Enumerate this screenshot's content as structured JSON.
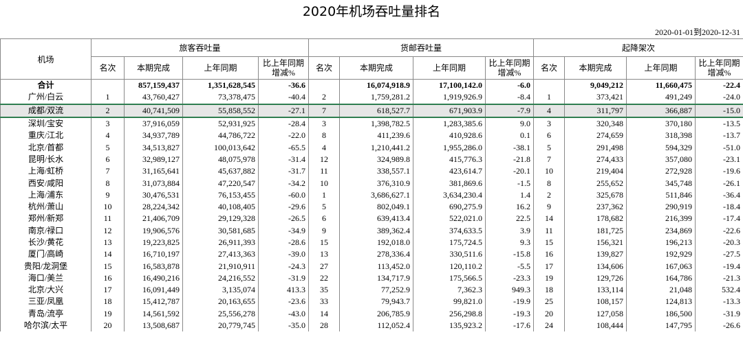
{
  "title": "2020年机场吞吐量排名",
  "date_range": "2020-01-01到2020-12-31",
  "header": {
    "airport": "机场",
    "groups": [
      "旅客吞吐量",
      "货邮吞吐量",
      "起降架次"
    ],
    "sub": [
      "名次",
      "本期完成",
      "上年同期",
      "比上年同期\n增减%"
    ]
  },
  "table": {
    "rows": [
      {
        "name": "合计",
        "passenger": {
          "current": "857,159,437",
          "previous": "1,351,628,545",
          "change": "-36.6"
        },
        "cargo": {
          "current": "16,074,918.9",
          "previous": "17,100,142.0",
          "change": "-6.0"
        },
        "flights": {
          "current": "9,049,212",
          "previous": "11,660,475",
          "change": "-22.4"
        }
      },
      {
        "name": "广州/白云",
        "passenger": {
          "rank": "1",
          "current": "43,760,427",
          "previous": "73,378,475",
          "change": "-40.4"
        },
        "cargo": {
          "rank": "2",
          "current": "1,759,281.2",
          "previous": "1,919,926.9",
          "change": "-8.4"
        },
        "flights": {
          "rank": "1",
          "current": "373,421",
          "previous": "491,249",
          "change": "-24.0"
        }
      },
      {
        "name": "成都/双流",
        "passenger": {
          "rank": "2",
          "current": "40,741,509",
          "previous": "55,858,552",
          "change": "-27.1"
        },
        "cargo": {
          "rank": "7",
          "current": "618,527.7",
          "previous": "671,903.9",
          "change": "-7.9"
        },
        "flights": {
          "rank": "4",
          "current": "311,797",
          "previous": "366,887",
          "change": "-15.0"
        }
      },
      {
        "name": "深圳/宝安",
        "passenger": {
          "rank": "3",
          "current": "37,916,059",
          "previous": "52,931,925",
          "change": "-28.4"
        },
        "cargo": {
          "rank": "3",
          "current": "1,398,782.5",
          "previous": "1,283,385.6",
          "change": "9.0"
        },
        "flights": {
          "rank": "3",
          "current": "320,348",
          "previous": "370,180",
          "change": "-13.5"
        }
      },
      {
        "name": "重庆/江北",
        "passenger": {
          "rank": "4",
          "current": "34,937,789",
          "previous": "44,786,722",
          "change": "-22.0"
        },
        "cargo": {
          "rank": "8",
          "current": "411,239.6",
          "previous": "410,928.6",
          "change": "0.1"
        },
        "flights": {
          "rank": "6",
          "current": "274,659",
          "previous": "318,398",
          "change": "-13.7"
        }
      },
      {
        "name": "北京/首都",
        "passenger": {
          "rank": "5",
          "current": "34,513,827",
          "previous": "100,013,642",
          "change": "-65.5"
        },
        "cargo": {
          "rank": "4",
          "current": "1,210,441.2",
          "previous": "1,955,286.0",
          "change": "-38.1"
        },
        "flights": {
          "rank": "5",
          "current": "291,498",
          "previous": "594,329",
          "change": "-51.0"
        }
      },
      {
        "name": "昆明/长水",
        "passenger": {
          "rank": "6",
          "current": "32,989,127",
          "previous": "48,075,978",
          "change": "-31.4"
        },
        "cargo": {
          "rank": "12",
          "current": "324,989.8",
          "previous": "415,776.3",
          "change": "-21.8"
        },
        "flights": {
          "rank": "7",
          "current": "274,433",
          "previous": "357,080",
          "change": "-23.1"
        }
      },
      {
        "name": "上海/虹桥",
        "passenger": {
          "rank": "7",
          "current": "31,165,641",
          "previous": "45,637,882",
          "change": "-31.7"
        },
        "cargo": {
          "rank": "11",
          "current": "338,557.1",
          "previous": "423,614.7",
          "change": "-20.1"
        },
        "flights": {
          "rank": "10",
          "current": "219,404",
          "previous": "272,928",
          "change": "-19.6"
        }
      },
      {
        "name": "西安/咸阳",
        "passenger": {
          "rank": "8",
          "current": "31,073,884",
          "previous": "47,220,547",
          "change": "-34.2"
        },
        "cargo": {
          "rank": "10",
          "current": "376,310.9",
          "previous": "381,869.6",
          "change": "-1.5"
        },
        "flights": {
          "rank": "8",
          "current": "255,652",
          "previous": "345,748",
          "change": "-26.1"
        }
      },
      {
        "name": "上海/浦东",
        "passenger": {
          "rank": "9",
          "current": "30,476,531",
          "previous": "76,153,455",
          "change": "-60.0"
        },
        "cargo": {
          "rank": "1",
          "current": "3,686,627.1",
          "previous": "3,634,230.4",
          "change": "1.4"
        },
        "flights": {
          "rank": "2",
          "current": "325,678",
          "previous": "511,846",
          "change": "-36.4"
        }
      },
      {
        "name": "杭州/萧山",
        "passenger": {
          "rank": "10",
          "current": "28,224,342",
          "previous": "40,108,405",
          "change": "-29.6"
        },
        "cargo": {
          "rank": "5",
          "current": "802,049.1",
          "previous": "690,275.9",
          "change": "16.2"
        },
        "flights": {
          "rank": "9",
          "current": "237,362",
          "previous": "290,919",
          "change": "-18.4"
        }
      },
      {
        "name": "郑州/新郑",
        "passenger": {
          "rank": "11",
          "current": "21,406,709",
          "previous": "29,129,328",
          "change": "-26.5"
        },
        "cargo": {
          "rank": "6",
          "current": "639,413.4",
          "previous": "522,021.0",
          "change": "22.5"
        },
        "flights": {
          "rank": "14",
          "current": "178,682",
          "previous": "216,399",
          "change": "-17.4"
        }
      },
      {
        "name": "南京/禄口",
        "passenger": {
          "rank": "12",
          "current": "19,906,576",
          "previous": "30,581,685",
          "change": "-34.9"
        },
        "cargo": {
          "rank": "9",
          "current": "389,362.4",
          "previous": "374,633.5",
          "change": "3.9"
        },
        "flights": {
          "rank": "11",
          "current": "181,725",
          "previous": "234,869",
          "change": "-22.6"
        }
      },
      {
        "name": "长沙/黄花",
        "passenger": {
          "rank": "13",
          "current": "19,223,825",
          "previous": "26,911,393",
          "change": "-28.6"
        },
        "cargo": {
          "rank": "15",
          "current": "192,018.0",
          "previous": "175,724.5",
          "change": "9.3"
        },
        "flights": {
          "rank": "15",
          "current": "156,321",
          "previous": "196,213",
          "change": "-20.3"
        }
      },
      {
        "name": "厦门/高崎",
        "passenger": {
          "rank": "14",
          "current": "16,710,197",
          "previous": "27,413,363",
          "change": "-39.0"
        },
        "cargo": {
          "rank": "13",
          "current": "278,336.4",
          "previous": "330,511.6",
          "change": "-15.8"
        },
        "flights": {
          "rank": "16",
          "current": "139,827",
          "previous": "192,929",
          "change": "-27.5"
        }
      },
      {
        "name": "贵阳/龙洞堡",
        "passenger": {
          "rank": "15",
          "current": "16,583,878",
          "previous": "21,910,911",
          "change": "-24.3"
        },
        "cargo": {
          "rank": "27",
          "current": "113,452.0",
          "previous": "120,110.2",
          "change": "-5.5"
        },
        "flights": {
          "rank": "17",
          "current": "134,606",
          "previous": "167,063",
          "change": "-19.4"
        }
      },
      {
        "name": "海口/美兰",
        "passenger": {
          "rank": "16",
          "current": "16,490,216",
          "previous": "24,216,552",
          "change": "-31.9"
        },
        "cargo": {
          "rank": "22",
          "current": "134,717.9",
          "previous": "175,566.5",
          "change": "-23.3"
        },
        "flights": {
          "rank": "19",
          "current": "129,726",
          "previous": "164,786",
          "change": "-21.3"
        }
      },
      {
        "name": "北京/大兴",
        "passenger": {
          "rank": "17",
          "current": "16,091,449",
          "previous": "3,135,074",
          "change": "413.3"
        },
        "cargo": {
          "rank": "35",
          "current": "77,252.9",
          "previous": "7,362.3",
          "change": "949.3"
        },
        "flights": {
          "rank": "18",
          "current": "133,114",
          "previous": "21,048",
          "change": "532.4"
        }
      },
      {
        "name": "三亚/凤凰",
        "passenger": {
          "rank": "18",
          "current": "15,412,787",
          "previous": "20,163,655",
          "change": "-23.6"
        },
        "cargo": {
          "rank": "33",
          "current": "79,943.7",
          "previous": "99,821.0",
          "change": "-19.9"
        },
        "flights": {
          "rank": "25",
          "current": "108,157",
          "previous": "124,813",
          "change": "-13.3"
        }
      },
      {
        "name": "青岛/流亭",
        "passenger": {
          "rank": "19",
          "current": "14,561,592",
          "previous": "25,556,278",
          "change": "-43.0"
        },
        "cargo": {
          "rank": "14",
          "current": "206,785.9",
          "previous": "256,298.8",
          "change": "-19.3"
        },
        "flights": {
          "rank": "20",
          "current": "127,058",
          "previous": "186,500",
          "change": "-31.9"
        }
      },
      {
        "name": "哈尔滨/太平",
        "passenger": {
          "rank": "20",
          "current": "13,508,687",
          "previous": "20,779,745",
          "change": "-35.0"
        },
        "cargo": {
          "rank": "28",
          "current": "112,052.4",
          "previous": "135,923.2",
          "change": "-17.6"
        },
        "flights": {
          "rank": "24",
          "current": "108,444",
          "previous": "147,795",
          "change": "-26.6"
        }
      }
    ]
  }
}
